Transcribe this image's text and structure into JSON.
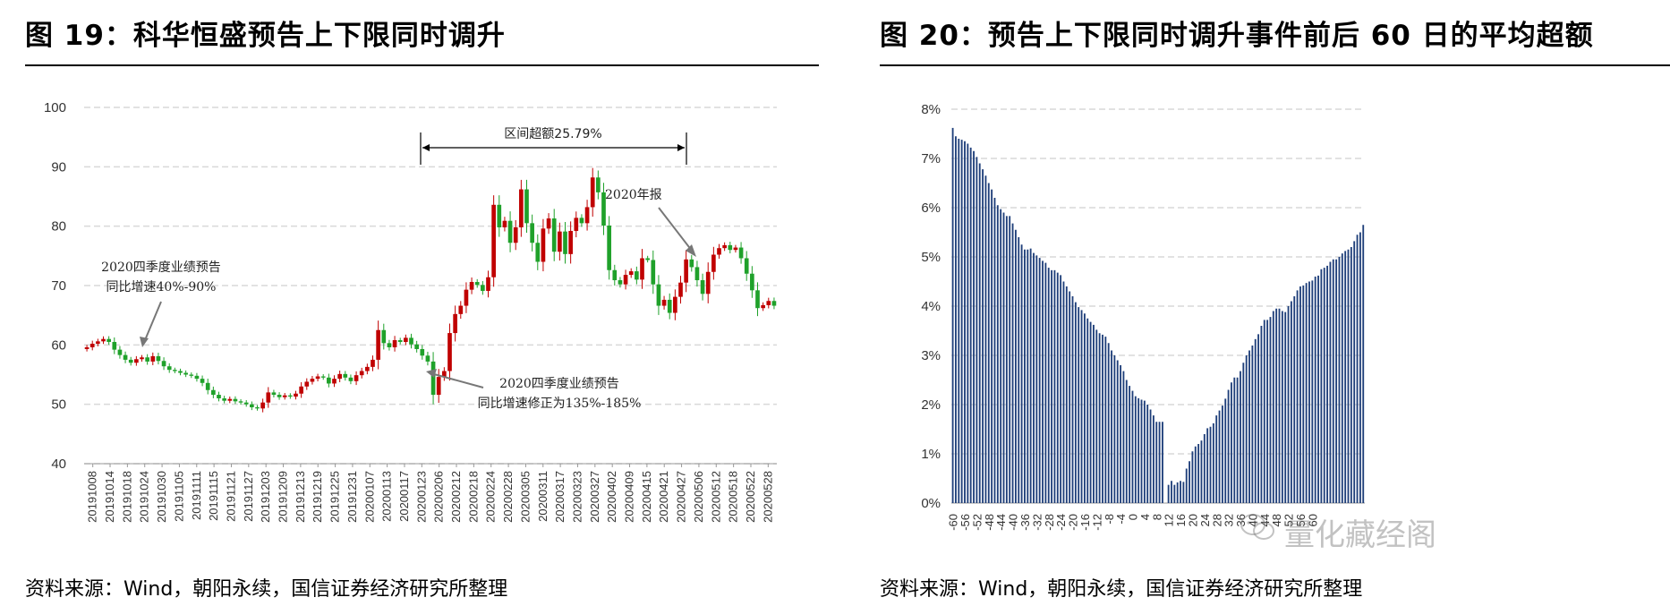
{
  "colors": {
    "up": "#c00000",
    "down": "#1fa12a",
    "bar": "#1f3f7a",
    "grid": "#d9d9d9"
  },
  "left": {
    "title": "图 19：科华恒盛预告上下限同时调升",
    "source": "资料来源：Wind，朝阳永续，国信证券经济研究所整理",
    "annotations": {
      "interval": "区间超额25.79%",
      "report2020": "2020年报",
      "q4_line1": "2020四季度业绩预告",
      "q4_line2": "同比增速40%-90%",
      "rev_line1": "2020四季度业绩预告",
      "rev_line2": "同比增速修正为135%-185%"
    }
  },
  "right": {
    "title": "图 20：预告上下限同时调升事件前后 60 日的平均超额",
    "source": "资料来源：Wind，朝阳永续，国信证券经济研究所整理",
    "watermark": "量化藏经阁"
  },
  "chart_data": [
    {
      "type": "candlestick",
      "ylim": [
        40,
        100
      ],
      "yticks": [
        40,
        50,
        60,
        70,
        80,
        90,
        100
      ],
      "xticks": [
        "20191008",
        "20191014",
        "20191018",
        "20191024",
        "20191030",
        "20191105",
        "20191111",
        "20191115",
        "20191121",
        "20191127",
        "20191203",
        "20191209",
        "20191213",
        "20191219",
        "20191225",
        "20191231",
        "20200107",
        "20200113",
        "20200117",
        "20200123",
        "20200206",
        "20200212",
        "20200218",
        "20200224",
        "20200228",
        "20200305",
        "20200311",
        "20200317",
        "20200323",
        "20200327",
        "20200402",
        "20200409",
        "20200415",
        "20200421",
        "20200427",
        "20200506",
        "20200512",
        "20200518",
        "20200522",
        "20200528"
      ],
      "close": [
        59.6,
        60.2,
        60.6,
        61.0,
        60.5,
        59.2,
        58.3,
        57.5,
        57.0,
        57.6,
        57.9,
        57.2,
        58.1,
        57.3,
        56.4,
        55.8,
        55.6,
        55.3,
        55.0,
        54.8,
        54.3,
        53.6,
        52.4,
        51.6,
        51.0,
        50.6,
        50.9,
        50.5,
        50.3,
        50.0,
        49.5,
        49.3,
        50.3,
        52.0,
        51.6,
        51.2,
        51.5,
        51.3,
        51.8,
        53.0,
        53.8,
        54.3,
        54.7,
        54.5,
        53.5,
        54.3,
        55.1,
        54.5,
        53.9,
        54.9,
        55.6,
        56.3,
        57.5,
        62.5,
        60.3,
        59.6,
        60.8,
        60.5,
        61.2,
        60.1,
        59.3,
        58.2,
        57.2,
        51.6,
        54.6,
        55.6,
        62.0,
        65.2,
        66.6,
        69.3,
        70.6,
        70.1,
        69.1,
        71.4,
        83.6,
        79.8,
        80.9,
        77.2,
        79.8,
        86.2,
        80.5,
        77.2,
        74.0,
        79.6,
        81.3,
        75.7,
        79.1,
        75.3,
        79.2,
        81.4,
        80.5,
        83.2,
        88.2,
        85.7,
        80.1,
        72.6,
        70.9,
        70.2,
        71.8,
        72.4,
        71.0,
        74.6,
        74.3,
        70.2,
        66.6,
        67.6,
        65.4,
        68.1,
        70.5,
        74.4,
        73.1,
        70.9,
        68.6,
        72.3,
        75.2,
        76.3,
        76.8,
        76.0,
        76.4,
        74.6,
        72.0,
        69.2,
        66.2,
        66.7,
        67.4,
        66.6
      ],
      "xlabel": "",
      "ylabel": ""
    },
    {
      "type": "bar",
      "ylim": [
        0,
        0.08
      ],
      "yticks": [
        "0%",
        "1%",
        "2%",
        "3%",
        "4%",
        "5%",
        "6%",
        "7%",
        "8%"
      ],
      "x_start": -60,
      "x_step": 1,
      "xticks": [
        "-60",
        "-56",
        "-52",
        "-48",
        "-44",
        "-40",
        "-36",
        "-32",
        "-28",
        "-24",
        "-20",
        "-16",
        "-12",
        "-8",
        "-4",
        "0",
        "4",
        "8",
        "12",
        "16",
        "20",
        "24",
        "28",
        "32",
        "36",
        "40",
        "44",
        "48",
        "52",
        "56",
        "60"
      ],
      "values": [
        0.0762,
        0.0745,
        0.074,
        0.0738,
        0.0735,
        0.073,
        0.0722,
        0.0715,
        0.0703,
        0.069,
        0.0678,
        0.0665,
        0.065,
        0.0637,
        0.062,
        0.0605,
        0.0597,
        0.059,
        0.0583,
        0.0583,
        0.0568,
        0.0555,
        0.054,
        0.0525,
        0.0515,
        0.0515,
        0.0517,
        0.0508,
        0.0503,
        0.0498,
        0.0492,
        0.0488,
        0.0478,
        0.0473,
        0.0473,
        0.0468,
        0.0463,
        0.045,
        0.044,
        0.043,
        0.042,
        0.0408,
        0.0398,
        0.0392,
        0.0385,
        0.0375,
        0.0368,
        0.0362,
        0.0352,
        0.0345,
        0.0342,
        0.0338,
        0.0325,
        0.031,
        0.03,
        0.029,
        0.028,
        0.0268,
        0.025,
        0.0238,
        0.0228,
        0.0217,
        0.0213,
        0.021,
        0.0208,
        0.02,
        0.019,
        0.0178,
        0.0165,
        0.0165,
        0.0165,
        0.0,
        0.0037,
        0.0045,
        0.0037,
        0.0042,
        0.0045,
        0.0043,
        0.007,
        0.0085,
        0.0105,
        0.0115,
        0.012,
        0.0127,
        0.014,
        0.0152,
        0.0155,
        0.0162,
        0.0178,
        0.0188,
        0.0198,
        0.0212,
        0.023,
        0.0245,
        0.0255,
        0.0255,
        0.0268,
        0.0285,
        0.03,
        0.031,
        0.032,
        0.0333,
        0.0343,
        0.036,
        0.0372,
        0.0372,
        0.0378,
        0.039,
        0.0395,
        0.0395,
        0.039,
        0.0388,
        0.04,
        0.041,
        0.042,
        0.0432,
        0.044,
        0.0442,
        0.0447,
        0.045,
        0.0452,
        0.046,
        0.0462,
        0.0475,
        0.0478,
        0.0482,
        0.049,
        0.0495,
        0.0495,
        0.05,
        0.0507,
        0.0512,
        0.0515,
        0.052,
        0.0532,
        0.0545,
        0.055,
        0.0565
      ],
      "xlabel": "",
      "ylabel": ""
    }
  ]
}
